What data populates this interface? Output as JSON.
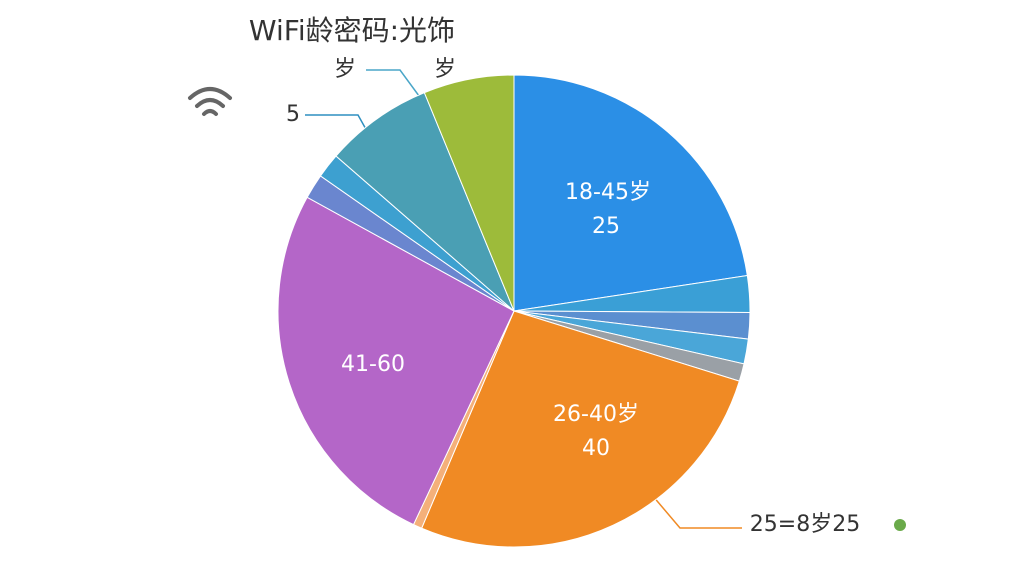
{
  "chart_data": {
    "type": "pie",
    "title": "WiFi龄密码:光饰",
    "categories": [
      "18-45岁",
      null,
      null,
      null,
      null,
      "26-40岁",
      null,
      "41-60",
      null,
      null,
      null,
      null
    ],
    "values": [
      22.6,
      2.5,
      1.8,
      1.7,
      1.2,
      26.6,
      0.6,
      26.0,
      1.7,
      1.7,
      7.4,
      6.2
    ],
    "colors": [
      "#2b8fe6",
      "#3a9fd6",
      "#5b8fd0",
      "#4aa6d8",
      "#9aa0a6",
      "#f08a24",
      "#f4b07a",
      "#b466c8",
      "#6a86cf",
      "#3da0d0",
      "#4a9fb4",
      "#9dbb3a"
    ],
    "annotations": [
      "25",
      "40",
      "岁",
      "岁",
      "5",
      "25=8岁25"
    ]
  }
}
